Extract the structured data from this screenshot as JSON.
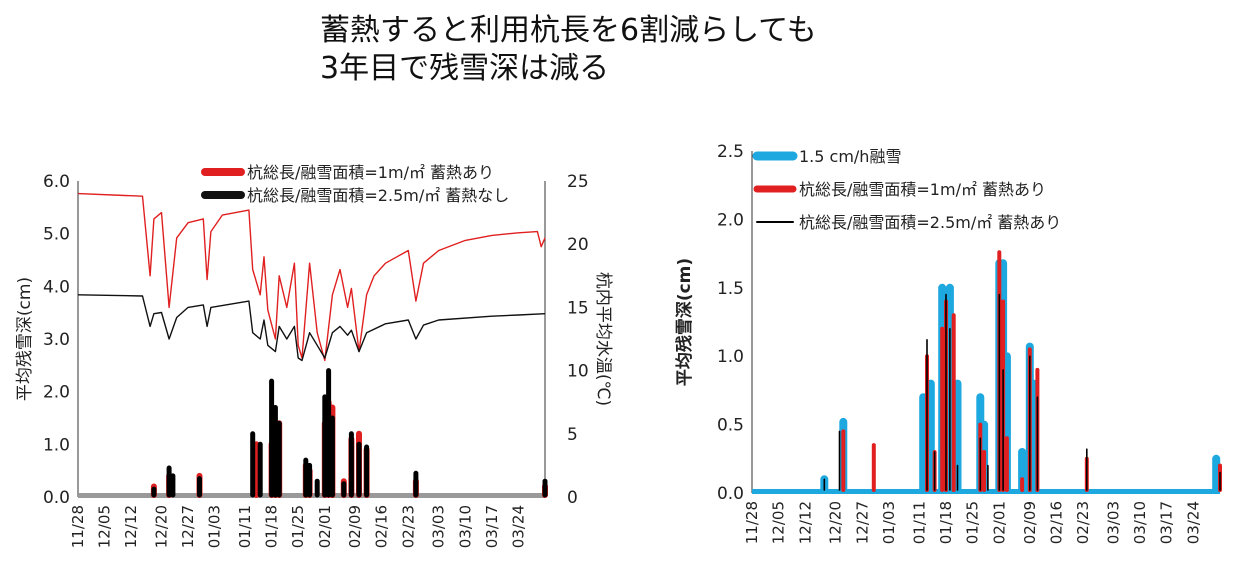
{
  "title": {
    "line1": "蓄熱すると利用杭長を6割減らしても",
    "line2": "3年目で残雪深は減る"
  },
  "chart_data": [
    {
      "type": "line",
      "xlabel": "",
      "ylabel": "平均残雪深(cm)",
      "y2label": "杭内平均水温(℃)",
      "ylim": [
        0,
        6
      ],
      "y2lim": [
        0,
        25
      ],
      "yticks": [
        "0.0",
        "1.0",
        "2.0",
        "3.0",
        "4.0",
        "5.0",
        "6.0"
      ],
      "y2ticks": [
        "0",
        "5",
        "10",
        "15",
        "20",
        "25"
      ],
      "x_start": "11/28",
      "x_end": "03/31",
      "xticks": [
        "11/28",
        "12/05",
        "12/12",
        "12/20",
        "12/27",
        "01/03",
        "01/11",
        "01/18",
        "01/25",
        "02/01",
        "02/09",
        "02/16",
        "02/23",
        "03/03",
        "03/10",
        "03/17",
        "03/24"
      ],
      "legend_position": "top",
      "series": [
        {
          "name": "杭総長/融雪面積=1m/㎡ 蓄熱あり",
          "color": "#e02020",
          "axis": "right",
          "kind": "temperature",
          "points": [
            [
              "11/28",
              24.0
            ],
            [
              "12/15",
              23.8
            ],
            [
              "12/17",
              17.5
            ],
            [
              "12/18",
              22.0
            ],
            [
              "12/20",
              22.5
            ],
            [
              "12/22",
              15.0
            ],
            [
              "12/24",
              20.5
            ],
            [
              "12/27",
              21.7
            ],
            [
              "12/31",
              22.0
            ],
            [
              "01/01",
              17.2
            ],
            [
              "01/02",
              21.0
            ],
            [
              "01/05",
              22.3
            ],
            [
              "01/12",
              22.7
            ],
            [
              "01/13",
              18.0
            ],
            [
              "01/15",
              16.0
            ],
            [
              "01/16",
              19.0
            ],
            [
              "01/17",
              14.8
            ],
            [
              "01/19",
              12.5
            ],
            [
              "01/20",
              17.5
            ],
            [
              "01/22",
              15.0
            ],
            [
              "01/24",
              18.5
            ],
            [
              "01/25",
              12.0
            ],
            [
              "01/26",
              11.0
            ],
            [
              "01/28",
              18.5
            ],
            [
              "01/30",
              13.0
            ],
            [
              "02/01",
              10.8
            ],
            [
              "02/03",
              16.0
            ],
            [
              "02/05",
              18.0
            ],
            [
              "02/07",
              15.0
            ],
            [
              "02/08",
              16.5
            ],
            [
              "02/10",
              11.5
            ],
            [
              "02/12",
              16.0
            ],
            [
              "02/14",
              17.5
            ],
            [
              "02/17",
              18.5
            ],
            [
              "02/20",
              19.0
            ],
            [
              "02/23",
              19.5
            ],
            [
              "02/25",
              15.5
            ],
            [
              "02/27",
              18.5
            ],
            [
              "03/03",
              19.5
            ],
            [
              "03/10",
              20.3
            ],
            [
              "03/17",
              20.7
            ],
            [
              "03/24",
              20.9
            ],
            [
              "03/29",
              21.0
            ],
            [
              "03/30",
              19.8
            ],
            [
              "03/31",
              20.5
            ]
          ]
        },
        {
          "name": "杭総長/融雪面積=2.5m/㎡ 蓄熱なし",
          "color": "#111111",
          "axis": "right",
          "kind": "temperature",
          "points": [
            [
              "11/28",
              16.0
            ],
            [
              "12/15",
              15.9
            ],
            [
              "12/17",
              13.5
            ],
            [
              "12/18",
              14.5
            ],
            [
              "12/20",
              14.6
            ],
            [
              "12/22",
              12.5
            ],
            [
              "12/24",
              14.2
            ],
            [
              "12/27",
              15.0
            ],
            [
              "12/31",
              15.2
            ],
            [
              "01/01",
              13.5
            ],
            [
              "01/02",
              15.0
            ],
            [
              "01/12",
              15.5
            ],
            [
              "01/13",
              13.0
            ],
            [
              "01/15",
              12.5
            ],
            [
              "01/16",
              14.0
            ],
            [
              "01/17",
              12.0
            ],
            [
              "01/19",
              11.5
            ],
            [
              "01/20",
              13.5
            ],
            [
              "01/22",
              12.5
            ],
            [
              "01/24",
              13.5
            ],
            [
              "01/25",
              11.0
            ],
            [
              "01/26",
              10.8
            ],
            [
              "01/28",
              13.0
            ],
            [
              "01/30",
              12.0
            ],
            [
              "02/01",
              11.0
            ],
            [
              "02/03",
              13.0
            ],
            [
              "02/05",
              13.5
            ],
            [
              "02/07",
              12.8
            ],
            [
              "02/08",
              13.2
            ],
            [
              "02/10",
              11.5
            ],
            [
              "02/12",
              13.0
            ],
            [
              "02/17",
              13.7
            ],
            [
              "02/23",
              14.0
            ],
            [
              "02/25",
              12.5
            ],
            [
              "02/27",
              13.6
            ],
            [
              "03/03",
              14.0
            ],
            [
              "03/17",
              14.3
            ],
            [
              "03/24",
              14.4
            ],
            [
              "03/31",
              14.5
            ]
          ]
        },
        {
          "name": "杭総長/融雪面積=1m/㎡ 蓄熱あり",
          "color": "#e02020",
          "axis": "left",
          "kind": "snow",
          "points": [
            [
              "12/18",
              0.2
            ],
            [
              "12/22",
              0.4
            ],
            [
              "12/30",
              0.4
            ],
            [
              "01/14",
              1.0
            ],
            [
              "01/18",
              1.0
            ],
            [
              "01/19",
              1.4
            ],
            [
              "01/20",
              1.4
            ],
            [
              "01/27",
              0.6
            ],
            [
              "01/28",
              0.5
            ],
            [
              "02/01",
              1.4
            ],
            [
              "02/02",
              1.8
            ],
            [
              "02/03",
              1.7
            ],
            [
              "02/06",
              0.3
            ],
            [
              "02/08",
              1.1
            ],
            [
              "02/10",
              1.2
            ],
            [
              "02/12",
              0.9
            ],
            [
              "02/25",
              0.3
            ],
            [
              "03/31",
              0.2
            ]
          ]
        },
        {
          "name": "杭総長/融雪面積=2.5m/㎡ 蓄熱なし",
          "color": "#000000",
          "axis": "left",
          "kind": "snow",
          "points": [
            [
              "12/18",
              0.15
            ],
            [
              "12/22",
              0.55
            ],
            [
              "12/23",
              0.4
            ],
            [
              "12/30",
              0.35
            ],
            [
              "01/13",
              1.2
            ],
            [
              "01/15",
              1.0
            ],
            [
              "01/18",
              2.2
            ],
            [
              "01/19",
              1.7
            ],
            [
              "01/20",
              1.4
            ],
            [
              "01/27",
              0.7
            ],
            [
              "01/28",
              0.6
            ],
            [
              "01/30",
              0.3
            ],
            [
              "02/01",
              1.9
            ],
            [
              "02/02",
              2.4
            ],
            [
              "02/03",
              1.5
            ],
            [
              "02/06",
              0.25
            ],
            [
              "02/08",
              1.2
            ],
            [
              "02/10",
              1.0
            ],
            [
              "02/12",
              0.95
            ],
            [
              "02/25",
              0.45
            ],
            [
              "03/31",
              0.3
            ]
          ]
        }
      ]
    },
    {
      "type": "line",
      "xlabel": "",
      "ylabel": "平均残雪深(cm)",
      "ylim": [
        0,
        2.5
      ],
      "yticks": [
        "0.0",
        "0.5",
        "1.0",
        "1.5",
        "2.0",
        "2.5"
      ],
      "x_start": "11/28",
      "x_end": "03/31",
      "xticks": [
        "11/28",
        "12/05",
        "12/12",
        "12/20",
        "12/27",
        "01/03",
        "01/11",
        "01/18",
        "01/25",
        "02/01",
        "02/09",
        "02/16",
        "02/23",
        "03/03",
        "03/10",
        "03/17",
        "03/24"
      ],
      "legend_position": "top-left",
      "series": [
        {
          "name": "1.5 cm/h融雪",
          "color": "#1ea8e0",
          "width": 8,
          "points": [
            [
              "12/17",
              0.1
            ],
            [
              "12/22",
              0.52
            ],
            [
              "01/12",
              0.7
            ],
            [
              "01/14",
              0.8
            ],
            [
              "01/17",
              1.5
            ],
            [
              "01/19",
              1.5
            ],
            [
              "01/21",
              0.8
            ],
            [
              "01/27",
              0.7
            ],
            [
              "01/28",
              0.5
            ],
            [
              "02/01",
              1.68
            ],
            [
              "02/02",
              1.68
            ],
            [
              "02/03",
              1.0
            ],
            [
              "02/07",
              0.3
            ],
            [
              "02/09",
              1.07
            ],
            [
              "02/10",
              0.8
            ],
            [
              "03/30",
              0.25
            ]
          ]
        },
        {
          "name": "杭総長/融雪面積=1m/㎡ 蓄熱あり",
          "color": "#e02020",
          "width": 4,
          "points": [
            [
              "12/22",
              0.45
            ],
            [
              "12/30",
              0.35
            ],
            [
              "01/13",
              1.0
            ],
            [
              "01/15",
              0.3
            ],
            [
              "01/17",
              1.2
            ],
            [
              "01/18",
              1.4
            ],
            [
              "01/20",
              1.3
            ],
            [
              "01/27",
              0.5
            ],
            [
              "01/28",
              0.3
            ],
            [
              "02/01",
              1.76
            ],
            [
              "02/02",
              1.4
            ],
            [
              "02/03",
              0.4
            ],
            [
              "02/07",
              0.1
            ],
            [
              "02/09",
              1.05
            ],
            [
              "02/11",
              0.9
            ],
            [
              "02/24",
              0.25
            ],
            [
              "03/31",
              0.2
            ]
          ]
        },
        {
          "name": "杭総長/融雪面積=2.5m/㎡ 蓄熱あり",
          "color": "#000000",
          "width": 1.6,
          "points": [
            [
              "12/17",
              0.1
            ],
            [
              "12/21",
              0.45
            ],
            [
              "01/13",
              1.12
            ],
            [
              "01/15",
              0.3
            ],
            [
              "01/18",
              1.45
            ],
            [
              "01/19",
              1.2
            ],
            [
              "01/21",
              0.2
            ],
            [
              "01/27",
              0.4
            ],
            [
              "01/29",
              0.2
            ],
            [
              "02/01",
              1.45
            ],
            [
              "02/02",
              0.9
            ],
            [
              "02/09",
              1.0
            ],
            [
              "02/11",
              0.7
            ],
            [
              "02/24",
              0.32
            ],
            [
              "03/31",
              0.15
            ]
          ]
        }
      ]
    }
  ]
}
